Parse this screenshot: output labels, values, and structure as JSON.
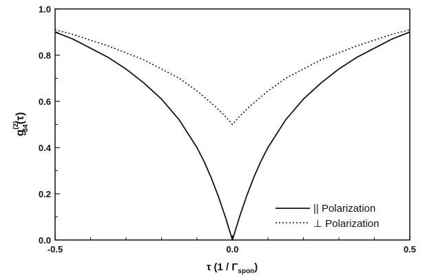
{
  "chart_data": {
    "type": "line",
    "title": "",
    "xlabel": {
      "main": "τ (1 / Γ",
      "sub": "spon",
      "close": ")"
    },
    "ylabel": {
      "base": "g",
      "sup": "(2)",
      "sub": "34",
      "arg": "(τ)"
    },
    "xlim": [
      -0.5,
      0.5
    ],
    "ylim": [
      0.0,
      1.0
    ],
    "xticks": [
      -0.5,
      0.0,
      0.5
    ],
    "xtick_labels": [
      "-0.5",
      "0.0",
      "0.5"
    ],
    "yticks": [
      0.0,
      0.2,
      0.4,
      0.6,
      0.8,
      1.0
    ],
    "ytick_labels": [
      "0.0",
      "0.2",
      "0.4",
      "0.6",
      "0.8",
      "1.0"
    ],
    "grid": false,
    "legend_position": "bottom-right",
    "series": [
      {
        "name": "|| Polarization",
        "style": "solid",
        "x": [
          -0.5,
          -0.45,
          -0.4,
          -0.35,
          -0.3,
          -0.25,
          -0.2,
          -0.15,
          -0.1,
          -0.08,
          -0.06,
          -0.04,
          -0.02,
          -0.01,
          0.0,
          0.01,
          0.02,
          0.04,
          0.06,
          0.08,
          0.1,
          0.15,
          0.2,
          0.25,
          0.3,
          0.35,
          0.4,
          0.45,
          0.5
        ],
        "y": [
          0.9,
          0.87,
          0.83,
          0.79,
          0.74,
          0.68,
          0.61,
          0.52,
          0.4,
          0.34,
          0.27,
          0.19,
          0.1,
          0.05,
          0.0,
          0.05,
          0.1,
          0.19,
          0.27,
          0.34,
          0.4,
          0.52,
          0.61,
          0.68,
          0.74,
          0.79,
          0.83,
          0.87,
          0.9
        ]
      },
      {
        "name": "⊥ Polarization",
        "style": "dotted",
        "x": [
          -0.5,
          -0.45,
          -0.4,
          -0.35,
          -0.3,
          -0.25,
          -0.2,
          -0.15,
          -0.1,
          -0.05,
          -0.02,
          0.0,
          0.02,
          0.05,
          0.1,
          0.15,
          0.2,
          0.25,
          0.3,
          0.35,
          0.4,
          0.45,
          0.5
        ],
        "y": [
          0.91,
          0.89,
          0.865,
          0.84,
          0.81,
          0.78,
          0.74,
          0.7,
          0.645,
          0.58,
          0.535,
          0.5,
          0.535,
          0.58,
          0.645,
          0.7,
          0.74,
          0.78,
          0.81,
          0.84,
          0.865,
          0.89,
          0.91
        ]
      }
    ]
  }
}
